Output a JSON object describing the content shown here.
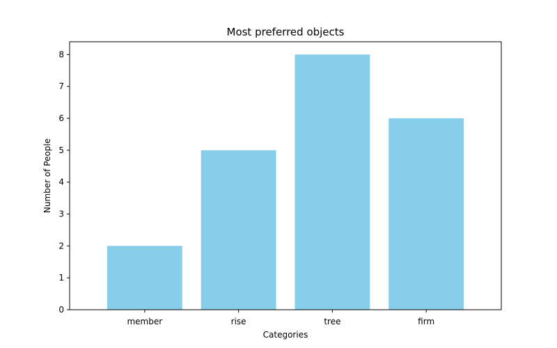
{
  "chart_data": {
    "type": "bar",
    "title": "Most preferred objects",
    "xlabel": "Categories",
    "ylabel": "Number of People",
    "categories": [
      "member",
      "rise",
      "tree",
      "firm"
    ],
    "values": [
      2,
      5,
      8,
      6
    ],
    "ylim": [
      0,
      8.4
    ],
    "yticks": [
      "0",
      "1",
      "2",
      "3",
      "4",
      "5",
      "6",
      "7",
      "8"
    ],
    "grid": false,
    "bar_color": "#87CEEB",
    "axis_color": "#000000"
  }
}
